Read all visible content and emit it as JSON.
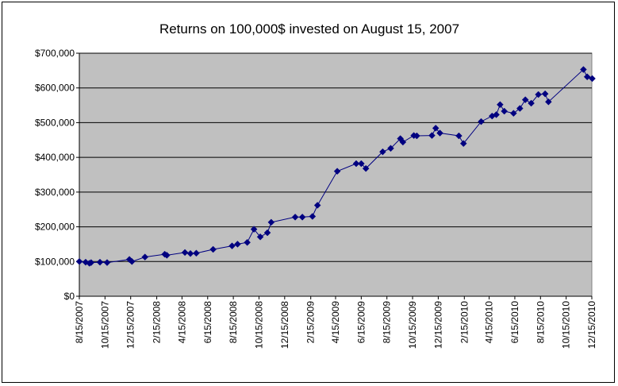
{
  "chart_data": {
    "type": "line",
    "title": "Returns on 100,000$ invested on August 15, 2007",
    "xlabel": "",
    "ylabel": "",
    "ylim": [
      0,
      700000
    ],
    "y_ticks": [
      0,
      100000,
      200000,
      300000,
      400000,
      500000,
      600000,
      700000
    ],
    "y_tick_labels": [
      "$0",
      "$100,000",
      "$200,000",
      "$300,000",
      "$400,000",
      "$500,000",
      "$600,000",
      "$700,000"
    ],
    "xlim": [
      "2007-08-15",
      "2010-12-15"
    ],
    "x_ticks": [
      "2007-08-15",
      "2007-10-15",
      "2007-12-15",
      "2008-02-15",
      "2008-04-15",
      "2008-06-15",
      "2008-08-15",
      "2008-10-15",
      "2008-12-15",
      "2009-02-15",
      "2009-04-15",
      "2009-06-15",
      "2009-08-15",
      "2009-10-15",
      "2009-12-15",
      "2010-02-15",
      "2010-04-15",
      "2010-06-15",
      "2010-08-15",
      "2010-10-15",
      "2010-12-15"
    ],
    "x_tick_labels": [
      "8/15/2007",
      "10/15/2007",
      "12/15/2007",
      "2/15/2008",
      "4/15/2008",
      "6/15/2008",
      "8/15/2008",
      "10/15/2008",
      "12/15/2008",
      "2/15/2009",
      "4/15/2009",
      "6/15/2009",
      "8/15/2009",
      "10/15/2009",
      "12/15/2009",
      "2/15/2010",
      "4/15/2010",
      "6/15/2010",
      "8/15/2010",
      "10/15/2010",
      "12/15/2010"
    ],
    "grid": true,
    "legend": "none",
    "colors": {
      "plot_background": "#C0C0C0",
      "gridline": "#000000",
      "series": "#000080"
    },
    "marker": "diamond",
    "series": [
      {
        "x": [
          "2007-08-15",
          "2007-08-30",
          "2007-09-08",
          "2007-09-12",
          "2007-10-03",
          "2007-10-20",
          "2007-12-12",
          "2007-12-18",
          "2008-01-18",
          "2008-03-05",
          "2008-03-10",
          "2008-04-22",
          "2008-05-05",
          "2008-05-19",
          "2008-06-28",
          "2008-08-12",
          "2008-08-25",
          "2008-09-17",
          "2008-10-03",
          "2008-10-18",
          "2008-11-04",
          "2008-11-13",
          "2009-01-09",
          "2009-01-26",
          "2009-02-19",
          "2009-03-03",
          "2009-04-19",
          "2009-06-03",
          "2009-06-15",
          "2009-06-26",
          "2009-08-05",
          "2009-08-24",
          "2009-09-16",
          "2009-09-22",
          "2009-10-18",
          "2009-10-25",
          "2009-11-30",
          "2009-12-09",
          "2009-12-19",
          "2010-02-02",
          "2010-02-13",
          "2010-03-27",
          "2010-04-22",
          "2010-05-02",
          "2010-05-11",
          "2010-05-21",
          "2010-06-12",
          "2010-06-27",
          "2010-07-10",
          "2010-07-24",
          "2010-08-10",
          "2010-08-26",
          "2010-09-03",
          "2010-11-25",
          "2010-12-04",
          "2010-12-16"
        ],
        "values": [
          100000,
          98000,
          95000,
          97000,
          98000,
          97000,
          106000,
          100000,
          113000,
          121000,
          118000,
          126000,
          123000,
          124000,
          135000,
          145000,
          150000,
          155000,
          193000,
          171000,
          183000,
          213000,
          228000,
          228000,
          230000,
          262000,
          360000,
          382000,
          382000,
          368000,
          416000,
          426000,
          454000,
          444000,
          463000,
          462000,
          463000,
          484000,
          470000,
          462000,
          440000,
          503000,
          519000,
          523000,
          552000,
          533000,
          527000,
          541000,
          566000,
          556000,
          581000,
          583000,
          560000,
          653000,
          632000,
          627000
        ]
      }
    ]
  }
}
